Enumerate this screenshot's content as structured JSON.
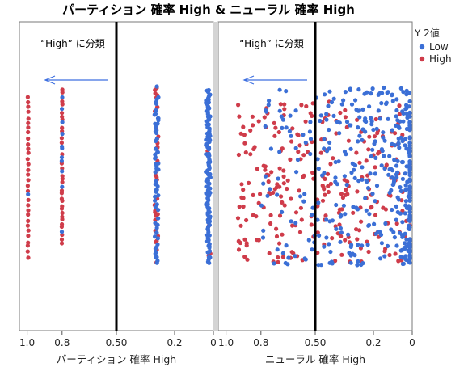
{
  "chart_data": {
    "type": "scatter",
    "title": "パーティション 確率 High & ニューラル 確率 High",
    "legend": {
      "title": "Y 2値",
      "placement": "top-right",
      "entries": [
        {
          "name": "Low",
          "color": "#3b6fd6"
        },
        {
          "name": "High",
          "color": "#cf3c4a"
        }
      ]
    },
    "panels": [
      {
        "xlabel": "パーティション 確率 High",
        "x_reversed": true,
        "xlim": [
          1.0,
          0
        ],
        "ticks": [
          "1.0",
          "0.8",
          "0.50",
          "0.2",
          "0"
        ],
        "tick_values": [
          0.96,
          0.78,
          0.5,
          0.2,
          0
        ],
        "cutoff": 0.5,
        "annotation": "“High” に分類",
        "arrow": "pointing-left",
        "distribution": "jittered columns at discrete probability values"
      },
      {
        "xlabel": "ニューラル 確率 High",
        "x_reversed": true,
        "xlim": [
          1.0,
          0
        ],
        "ticks": [
          "1.0",
          "0.8",
          "0.50",
          "0.2",
          "0"
        ],
        "tick_values": [
          0.96,
          0.78,
          0.5,
          0.2,
          0
        ],
        "cutoff": 0.5,
        "annotation": "“High” に分類",
        "arrow": "pointing-left",
        "distribution": "continuous probabilities, Low dense near 0, High spread 0.3–0.9"
      }
    ],
    "grid": false
  }
}
